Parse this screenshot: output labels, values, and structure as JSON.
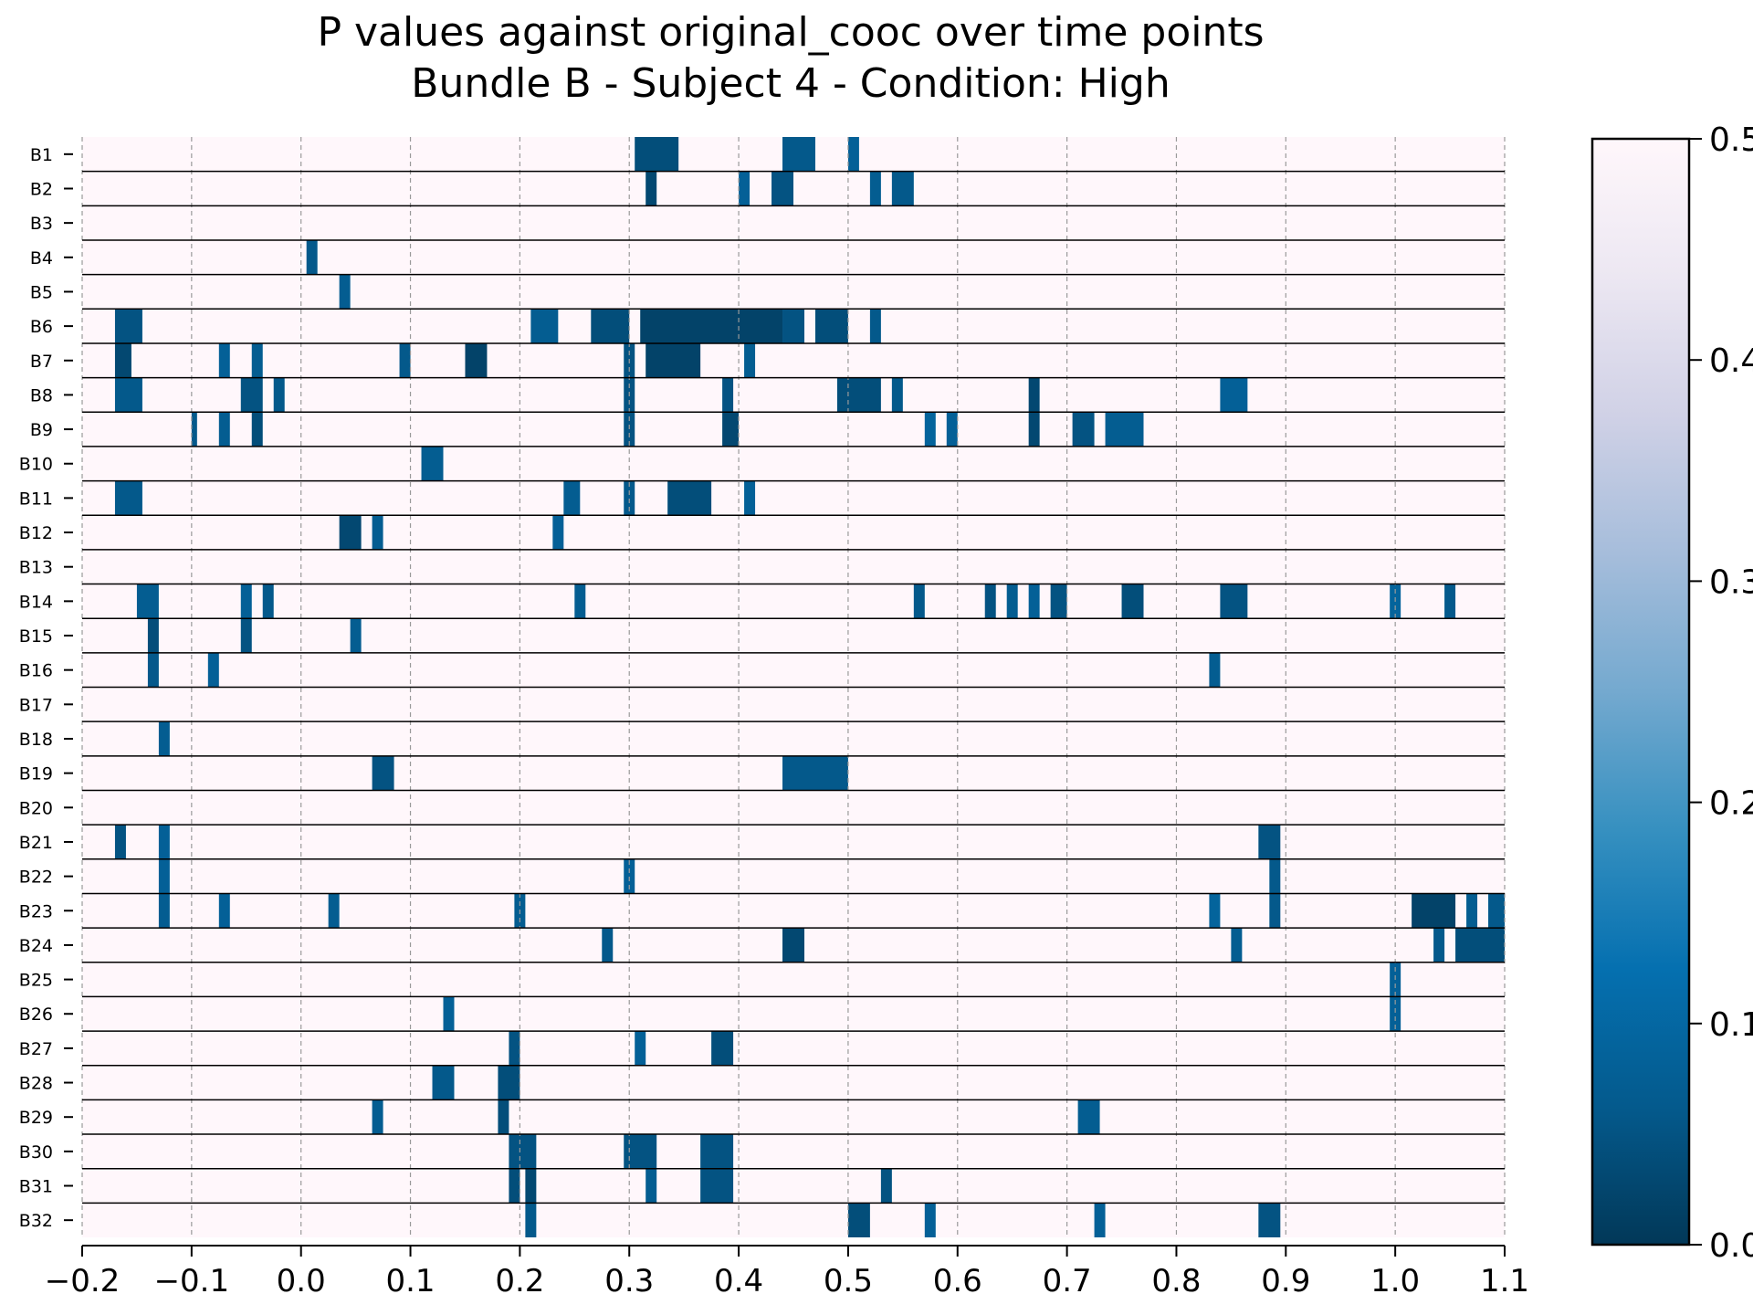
{
  "chart_data": {
    "type": "heatmap",
    "title_line1": "P values against original_cooc over time points",
    "title_line2": "Bundle B - Subject 4 - Condition: High",
    "xlabel": "",
    "ylabel": "",
    "xlim": [
      -0.2,
      1.1
    ],
    "xticks": [
      "−0.2",
      "−0.1",
      "0.0",
      "0.1",
      "0.2",
      "0.3",
      "0.4",
      "0.5",
      "0.6",
      "0.7",
      "0.8",
      "0.9",
      "1.0",
      "1.1"
    ],
    "xtick_values": [
      -0.2,
      -0.1,
      0.0,
      0.1,
      0.2,
      0.3,
      0.4,
      0.5,
      0.6,
      0.7,
      0.8,
      0.9,
      1.0,
      1.1
    ],
    "grid_vertical_dashed": true,
    "colormap": "PuBu_r",
    "colorbar": {
      "range": [
        0.0,
        0.5
      ],
      "ticks": [
        "0.0",
        "0.1",
        "0.2",
        "0.3",
        "0.4",
        "0.5"
      ],
      "tick_values": [
        0.0,
        0.1,
        0.2,
        0.3,
        0.4,
        0.5
      ],
      "colors": [
        "#023858",
        "#045a8d",
        "#0570b0",
        "#3690c0",
        "#74a9cf",
        "#a6bddb",
        "#d0d1e6",
        "#ece7f2",
        "#fff7fb"
      ]
    },
    "background_value": 0.5,
    "rows": [
      {
        "label": "B1",
        "segments": [
          [
            0.305,
            0.345,
            0.04
          ],
          [
            0.44,
            0.47,
            0.06
          ],
          [
            0.5,
            0.51,
            0.08
          ]
        ]
      },
      {
        "label": "B2",
        "segments": [
          [
            0.315,
            0.325,
            0.03
          ],
          [
            0.4,
            0.41,
            0.08
          ],
          [
            0.43,
            0.45,
            0.05
          ],
          [
            0.52,
            0.53,
            0.07
          ],
          [
            0.54,
            0.56,
            0.06
          ]
        ]
      },
      {
        "label": "B3",
        "segments": []
      },
      {
        "label": "B4",
        "segments": [
          [
            0.005,
            0.015,
            0.06
          ]
        ]
      },
      {
        "label": "B5",
        "segments": [
          [
            0.035,
            0.045,
            0.07
          ]
        ]
      },
      {
        "label": "B6",
        "segments": [
          [
            -0.17,
            -0.145,
            0.05
          ],
          [
            0.21,
            0.235,
            0.07
          ],
          [
            0.265,
            0.3,
            0.04
          ],
          [
            0.31,
            0.44,
            0.02
          ],
          [
            0.44,
            0.46,
            0.05
          ],
          [
            0.47,
            0.5,
            0.04
          ],
          [
            0.52,
            0.53,
            0.06
          ]
        ]
      },
      {
        "label": "B7",
        "segments": [
          [
            -0.17,
            -0.155,
            0.03
          ],
          [
            -0.075,
            -0.065,
            0.08
          ],
          [
            -0.045,
            -0.035,
            0.07
          ],
          [
            0.09,
            0.1,
            0.06
          ],
          [
            0.15,
            0.17,
            0.02
          ],
          [
            0.295,
            0.305,
            0.05
          ],
          [
            0.315,
            0.365,
            0.02
          ],
          [
            0.405,
            0.415,
            0.07
          ]
        ]
      },
      {
        "label": "B8",
        "segments": [
          [
            -0.17,
            -0.145,
            0.06
          ],
          [
            -0.055,
            -0.035,
            0.05
          ],
          [
            -0.025,
            -0.015,
            0.06
          ],
          [
            0.295,
            0.305,
            0.05
          ],
          [
            0.385,
            0.395,
            0.05
          ],
          [
            0.49,
            0.53,
            0.04
          ],
          [
            0.54,
            0.55,
            0.06
          ],
          [
            0.665,
            0.675,
            0.03
          ],
          [
            0.84,
            0.865,
            0.08
          ]
        ]
      },
      {
        "label": "B9",
        "segments": [
          [
            -0.1,
            -0.095,
            0.06
          ],
          [
            -0.075,
            -0.065,
            0.07
          ],
          [
            -0.045,
            -0.035,
            0.04
          ],
          [
            0.295,
            0.305,
            0.05
          ],
          [
            0.385,
            0.4,
            0.03
          ],
          [
            0.57,
            0.58,
            0.09
          ],
          [
            0.59,
            0.6,
            0.08
          ],
          [
            0.665,
            0.675,
            0.03
          ],
          [
            0.705,
            0.725,
            0.05
          ],
          [
            0.735,
            0.77,
            0.07
          ]
        ]
      },
      {
        "label": "B10",
        "segments": [
          [
            0.11,
            0.13,
            0.07
          ]
        ]
      },
      {
        "label": "B11",
        "segments": [
          [
            -0.17,
            -0.145,
            0.06
          ],
          [
            0.24,
            0.255,
            0.07
          ],
          [
            0.295,
            0.305,
            0.06
          ],
          [
            0.335,
            0.375,
            0.04
          ],
          [
            0.405,
            0.415,
            0.08
          ]
        ]
      },
      {
        "label": "B12",
        "segments": [
          [
            0.035,
            0.055,
            0.03
          ],
          [
            0.065,
            0.075,
            0.07
          ],
          [
            0.23,
            0.24,
            0.08
          ]
        ]
      },
      {
        "label": "B13",
        "segments": []
      },
      {
        "label": "B14",
        "segments": [
          [
            -0.15,
            -0.13,
            0.07
          ],
          [
            -0.055,
            -0.045,
            0.08
          ],
          [
            -0.035,
            -0.025,
            0.06
          ],
          [
            0.25,
            0.26,
            0.07
          ],
          [
            0.56,
            0.57,
            0.06
          ],
          [
            0.625,
            0.635,
            0.05
          ],
          [
            0.645,
            0.655,
            0.07
          ],
          [
            0.665,
            0.675,
            0.08
          ],
          [
            0.685,
            0.7,
            0.05
          ],
          [
            0.75,
            0.77,
            0.04
          ],
          [
            0.84,
            0.865,
            0.05
          ],
          [
            0.995,
            1.005,
            0.09
          ],
          [
            1.045,
            1.055,
            0.06
          ]
        ]
      },
      {
        "label": "B15",
        "segments": [
          [
            -0.14,
            -0.13,
            0.04
          ],
          [
            -0.055,
            -0.045,
            0.05
          ],
          [
            0.045,
            0.055,
            0.07
          ]
        ]
      },
      {
        "label": "B16",
        "segments": [
          [
            -0.14,
            -0.13,
            0.06
          ],
          [
            -0.085,
            -0.075,
            0.08
          ],
          [
            0.83,
            0.84,
            0.07
          ]
        ]
      },
      {
        "label": "B17",
        "segments": []
      },
      {
        "label": "B18",
        "segments": [
          [
            -0.13,
            -0.12,
            0.07
          ]
        ]
      },
      {
        "label": "B19",
        "segments": [
          [
            0.065,
            0.085,
            0.05
          ],
          [
            0.44,
            0.5,
            0.06
          ]
        ]
      },
      {
        "label": "B20",
        "segments": []
      },
      {
        "label": "B21",
        "segments": [
          [
            -0.17,
            -0.16,
            0.05
          ],
          [
            -0.13,
            -0.12,
            0.08
          ],
          [
            0.875,
            0.895,
            0.05
          ]
        ]
      },
      {
        "label": "B22",
        "segments": [
          [
            -0.13,
            -0.12,
            0.08
          ],
          [
            0.295,
            0.305,
            0.08
          ],
          [
            0.885,
            0.895,
            0.06
          ]
        ]
      },
      {
        "label": "B23",
        "segments": [
          [
            -0.13,
            -0.12,
            0.07
          ],
          [
            -0.075,
            -0.065,
            0.08
          ],
          [
            0.025,
            0.035,
            0.07
          ],
          [
            0.195,
            0.205,
            0.07
          ],
          [
            0.83,
            0.84,
            0.09
          ],
          [
            0.885,
            0.895,
            0.06
          ],
          [
            1.015,
            1.055,
            0.02
          ],
          [
            1.065,
            1.075,
            0.07
          ],
          [
            1.085,
            1.1,
            0.06
          ]
        ]
      },
      {
        "label": "B24",
        "segments": [
          [
            0.275,
            0.285,
            0.06
          ],
          [
            0.44,
            0.46,
            0.03
          ],
          [
            0.85,
            0.86,
            0.07
          ],
          [
            1.035,
            1.045,
            0.06
          ],
          [
            1.055,
            1.1,
            0.04
          ]
        ]
      },
      {
        "label": "B25",
        "segments": [
          [
            0.995,
            1.005,
            0.08
          ]
        ]
      },
      {
        "label": "B26",
        "segments": [
          [
            0.13,
            0.14,
            0.08
          ],
          [
            0.995,
            1.005,
            0.08
          ]
        ]
      },
      {
        "label": "B27",
        "segments": [
          [
            0.19,
            0.2,
            0.05
          ],
          [
            0.305,
            0.315,
            0.08
          ],
          [
            0.375,
            0.395,
            0.04
          ]
        ]
      },
      {
        "label": "B28",
        "segments": [
          [
            0.12,
            0.14,
            0.06
          ],
          [
            0.18,
            0.2,
            0.04
          ]
        ]
      },
      {
        "label": "B29",
        "segments": [
          [
            0.065,
            0.075,
            0.07
          ],
          [
            0.18,
            0.19,
            0.04
          ],
          [
            0.71,
            0.73,
            0.07
          ]
        ]
      },
      {
        "label": "B30",
        "segments": [
          [
            0.19,
            0.215,
            0.05
          ],
          [
            0.295,
            0.325,
            0.05
          ],
          [
            0.365,
            0.395,
            0.05
          ]
        ]
      },
      {
        "label": "B31",
        "segments": [
          [
            0.19,
            0.2,
            0.04
          ],
          [
            0.205,
            0.215,
            0.03
          ],
          [
            0.315,
            0.325,
            0.07
          ],
          [
            0.365,
            0.395,
            0.05
          ],
          [
            0.53,
            0.54,
            0.05
          ]
        ]
      },
      {
        "label": "B32",
        "segments": [
          [
            0.205,
            0.215,
            0.06
          ],
          [
            0.5,
            0.52,
            0.04
          ],
          [
            0.57,
            0.58,
            0.08
          ],
          [
            0.725,
            0.735,
            0.08
          ],
          [
            0.875,
            0.895,
            0.05
          ]
        ]
      }
    ]
  }
}
